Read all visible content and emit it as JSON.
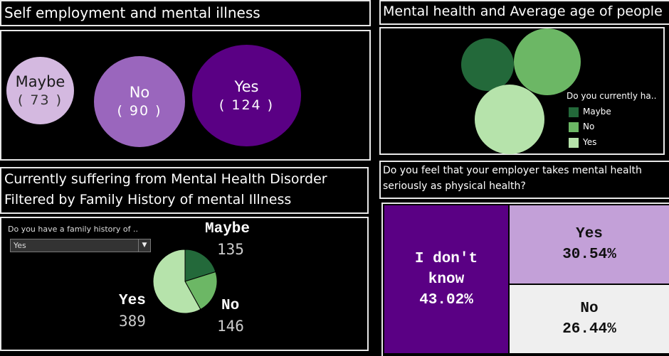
{
  "panels": {
    "self_employment": {
      "title": "Self employment and mental illness"
    },
    "avg_age": {
      "title": "Mental health and Average age of people"
    },
    "family_history": {
      "title_line1": "Currently suffering from Mental Health Disorder",
      "title_line2": "Filtered by Family History of mental Illness",
      "filter_label": "Do you have a family history of ..",
      "filter_value": "Yes"
    },
    "employer": {
      "title_line1": "Do you feel that your employer takes mental health",
      "title_line2": "seriously as physical health?"
    }
  },
  "chart_data": [
    {
      "type": "bubble",
      "title": "Self employment and mental illness",
      "items": [
        {
          "label": "Maybe",
          "value": 73,
          "value_text": "( 73 )",
          "color": "#d4b9e0",
          "text_color": "#1a1a1a"
        },
        {
          "label": "No",
          "value": 90,
          "value_text": "( 90 )",
          "color": "#9a66bd",
          "text_color": "#ffffff"
        },
        {
          "label": "Yes",
          "value": 124,
          "value_text": "( 124 )",
          "color": "#5a0084",
          "text_color": "#ffffff"
        }
      ]
    },
    {
      "type": "bubble",
      "title": "Mental health and Average age of people",
      "legend_title": "Do you currently ha..",
      "legend_position": "right",
      "items": [
        {
          "label": "Maybe",
          "color": "#23693a"
        },
        {
          "label": "No",
          "color": "#6cb765"
        },
        {
          "label": "Yes",
          "color": "#b6e3ab"
        }
      ]
    },
    {
      "type": "pie",
      "title": "Currently suffering from Mental Health Disorder Filtered by Family History of mental Illness",
      "slices": [
        {
          "label": "Maybe",
          "value": 135,
          "color": "#23693a"
        },
        {
          "label": "No",
          "value": 146,
          "color": "#6cb765"
        },
        {
          "label": "Yes",
          "value": 389,
          "color": "#b6e3ab"
        }
      ]
    },
    {
      "type": "treemap",
      "title": "Do you feel that your employer takes mental health seriously as physical health?",
      "items": [
        {
          "label": "I don't know",
          "value": 43.02,
          "value_text": "43.02%",
          "color": "#5a0084",
          "text_color": "#ffffff"
        },
        {
          "label": "Yes",
          "value": 30.54,
          "value_text": "30.54%",
          "color": "#c3a0d8",
          "text_color": "#111111"
        },
        {
          "label": "No",
          "value": 26.44,
          "value_text": "26.44%",
          "color": "#efefef",
          "text_color": "#111111"
        }
      ]
    }
  ]
}
